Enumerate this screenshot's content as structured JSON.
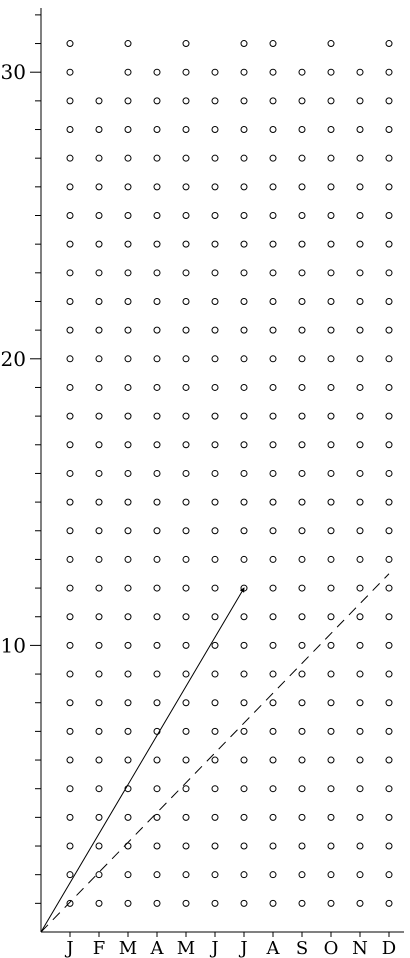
{
  "chart_data": {
    "type": "scatter",
    "title": "",
    "xlabel": "",
    "ylabel": "",
    "x_categories": [
      "J",
      "F",
      "M",
      "A",
      "M",
      "J",
      "J",
      "A",
      "S",
      "O",
      "N",
      "D"
    ],
    "y_ticks": [
      {
        "value": 10,
        "label": "10"
      },
      {
        "value": 20,
        "label": "20"
      },
      {
        "value": 30,
        "label": "30"
      }
    ],
    "ylim": [
      0,
      32
    ],
    "days_in_month": [
      31,
      29,
      31,
      30,
      31,
      30,
      31,
      31,
      30,
      31,
      30,
      31
    ],
    "marker": "open-circle",
    "grid": false,
    "legend": "none",
    "arrow_series": {
      "style": "solid-arrow",
      "points": [
        {
          "x": 0,
          "y": 0
        },
        {
          "x": 7,
          "y": 12
        }
      ]
    },
    "dashed_series": {
      "style": "dashed",
      "points": [
        {
          "x": 0,
          "y": 0
        },
        {
          "x": 12,
          "y": 12.5
        }
      ]
    }
  },
  "colors": {
    "axis": "#000000",
    "marker": "#000000",
    "line": "#000000",
    "background": "#ffffff"
  }
}
